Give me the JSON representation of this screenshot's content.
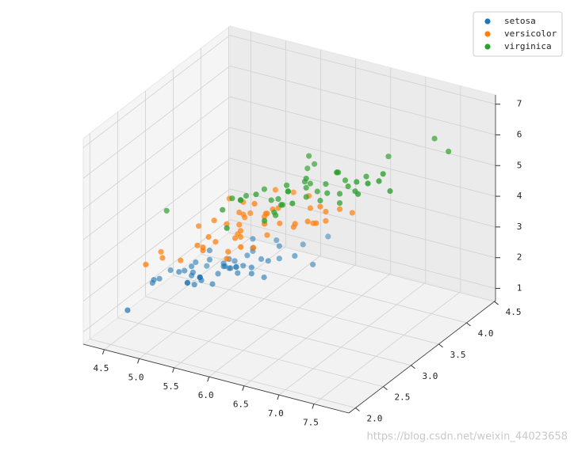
{
  "chart_data": {
    "type": "scatter3d",
    "xlim": [
      4.2,
      8.0
    ],
    "ylim": [
      1.88,
      4.52
    ],
    "zlim": [
      0.6,
      7.3
    ],
    "xticks": [
      4.5,
      {
        "value": 5,
        "label": "5.0"
      },
      5.5,
      {
        "value": 6,
        "label": "6.0"
      },
      6.5,
      {
        "value": 7,
        "label": "7.0"
      },
      7.5
    ],
    "yticks": [
      {
        "value": 2,
        "label": "2.0"
      },
      2.5,
      {
        "value": 3,
        "label": "3.0"
      },
      3.5,
      {
        "value": 4,
        "label": "4.0"
      },
      4.5
    ],
    "zticks": [
      1,
      2,
      3,
      4,
      5,
      6,
      7
    ],
    "grid": true,
    "legend": "upper right",
    "watermark": "https://blog.csdn.net/weixin_44023658",
    "series": [
      {
        "name": "setosa",
        "color": "#1f77b4",
        "x": [
          5.1,
          4.9,
          4.7,
          4.6,
          5.0,
          5.4,
          4.6,
          5.0,
          4.4,
          4.9,
          5.4,
          4.8,
          4.8,
          4.3,
          5.8,
          5.7,
          5.4,
          5.1,
          5.7,
          5.1,
          5.4,
          5.1,
          4.6,
          5.1,
          4.8,
          5.0,
          5.0,
          5.2,
          5.2,
          4.7,
          4.8,
          5.4,
          5.2,
          5.5,
          4.9,
          5.0,
          5.5,
          4.9,
          4.4,
          5.1,
          5.0,
          4.5,
          4.4,
          5.0,
          5.1,
          4.8,
          5.1,
          4.6,
          5.3,
          5.0
        ],
        "y": [
          3.5,
          3.0,
          3.2,
          3.1,
          3.6,
          3.9,
          3.4,
          3.4,
          2.9,
          3.1,
          3.7,
          3.4,
          3.0,
          3.0,
          4.0,
          4.4,
          3.9,
          3.5,
          3.8,
          3.8,
          3.4,
          3.7,
          3.6,
          3.3,
          3.4,
          3.0,
          3.4,
          3.5,
          3.4,
          3.2,
          3.1,
          3.4,
          4.1,
          4.2,
          3.1,
          3.2,
          3.5,
          3.1,
          3.0,
          3.4,
          3.5,
          2.3,
          3.2,
          3.5,
          3.8,
          3.0,
          3.8,
          3.2,
          3.7,
          3.3
        ],
        "z": [
          1.4,
          1.4,
          1.3,
          1.5,
          1.4,
          1.7,
          1.4,
          1.5,
          1.4,
          1.5,
          1.5,
          1.6,
          1.4,
          1.1,
          1.2,
          1.5,
          1.3,
          1.4,
          1.7,
          1.5,
          1.7,
          1.5,
          1.0,
          1.7,
          1.9,
          1.6,
          1.6,
          1.5,
          1.4,
          1.6,
          1.6,
          1.5,
          1.5,
          1.4,
          1.5,
          1.2,
          1.3,
          1.5,
          1.3,
          1.5,
          1.3,
          1.3,
          1.3,
          1.6,
          1.9,
          1.4,
          1.6,
          1.4,
          1.5,
          1.4
        ]
      },
      {
        "name": "versicolor",
        "color": "#ff7f0e",
        "x": [
          7.0,
          6.4,
          6.9,
          5.5,
          6.5,
          5.7,
          6.3,
          4.9,
          6.6,
          5.2,
          5.0,
          5.9,
          6.0,
          6.1,
          5.6,
          6.7,
          5.6,
          5.8,
          6.2,
          5.6,
          5.9,
          6.1,
          6.3,
          6.1,
          6.4,
          6.6,
          6.8,
          6.7,
          6.0,
          5.7,
          5.5,
          5.5,
          5.8,
          6.0,
          5.4,
          6.0,
          6.7,
          6.3,
          5.6,
          5.5,
          5.5,
          6.1,
          5.8,
          5.0,
          5.6,
          5.7,
          5.7,
          6.2,
          5.1,
          5.7
        ],
        "y": [
          3.2,
          3.2,
          3.1,
          2.3,
          2.8,
          2.8,
          3.3,
          2.4,
          2.9,
          2.7,
          2.0,
          3.0,
          2.2,
          2.9,
          2.9,
          3.1,
          3.0,
          2.7,
          2.2,
          2.5,
          3.2,
          2.8,
          2.5,
          2.8,
          2.9,
          3.0,
          2.8,
          3.0,
          2.9,
          2.6,
          2.4,
          2.4,
          2.7,
          2.7,
          3.0,
          3.4,
          3.1,
          2.3,
          3.0,
          2.5,
          2.6,
          3.0,
          2.6,
          2.3,
          2.7,
          3.0,
          2.9,
          2.9,
          2.5,
          2.8
        ],
        "z": [
          4.7,
          4.5,
          4.9,
          4.0,
          4.6,
          4.5,
          4.7,
          3.3,
          4.6,
          3.9,
          3.5,
          4.2,
          4.0,
          4.7,
          3.6,
          4.4,
          4.5,
          4.1,
          4.5,
          3.9,
          4.8,
          4.0,
          4.9,
          4.7,
          4.3,
          4.4,
          4.8,
          5.0,
          4.5,
          3.5,
          3.8,
          3.7,
          3.9,
          5.1,
          4.5,
          4.5,
          4.7,
          4.4,
          4.1,
          4.0,
          4.4,
          4.6,
          4.0,
          3.3,
          4.2,
          4.2,
          4.2,
          4.3,
          3.0,
          4.1
        ]
      },
      {
        "name": "virginica",
        "color": "#2ca02c",
        "x": [
          6.3,
          5.8,
          7.1,
          6.3,
          6.5,
          7.6,
          4.9,
          7.3,
          6.7,
          7.2,
          6.5,
          6.4,
          6.8,
          5.7,
          5.8,
          6.4,
          6.5,
          7.7,
          7.7,
          6.0,
          6.9,
          5.6,
          7.7,
          6.3,
          6.7,
          7.2,
          6.2,
          6.1,
          6.4,
          7.2,
          7.4,
          7.9,
          6.4,
          6.3,
          6.1,
          7.7,
          6.3,
          6.4,
          6.0,
          6.9,
          6.7,
          6.9,
          5.8,
          6.8,
          6.7,
          6.7,
          6.3,
          6.5,
          6.2,
          5.9
        ],
        "y": [
          3.3,
          2.7,
          3.0,
          2.9,
          3.0,
          3.0,
          2.5,
          2.9,
          2.5,
          3.6,
          3.2,
          2.7,
          3.0,
          2.5,
          2.8,
          3.2,
          3.0,
          3.8,
          2.6,
          2.2,
          3.2,
          2.8,
          2.8,
          2.7,
          3.3,
          3.2,
          2.8,
          3.0,
          2.8,
          3.0,
          2.8,
          3.8,
          2.8,
          2.8,
          2.6,
          3.0,
          3.4,
          3.1,
          3.0,
          3.1,
          3.1,
          3.1,
          2.7,
          3.2,
          3.3,
          3.0,
          2.5,
          3.0,
          3.4,
          3.0
        ],
        "z": [
          6.0,
          5.1,
          5.9,
          5.6,
          5.8,
          6.6,
          4.5,
          6.3,
          5.8,
          6.1,
          5.1,
          5.3,
          5.5,
          5.0,
          5.1,
          5.3,
          5.5,
          6.7,
          6.9,
          5.0,
          5.7,
          4.9,
          6.7,
          4.9,
          5.7,
          6.0,
          4.8,
          4.9,
          5.6,
          5.8,
          6.1,
          6.4,
          5.6,
          5.1,
          5.6,
          6.1,
          5.6,
          5.5,
          4.8,
          5.4,
          5.6,
          5.1,
          5.1,
          5.9,
          5.7,
          5.2,
          5.0,
          5.2,
          5.4,
          5.1
        ]
      }
    ]
  }
}
